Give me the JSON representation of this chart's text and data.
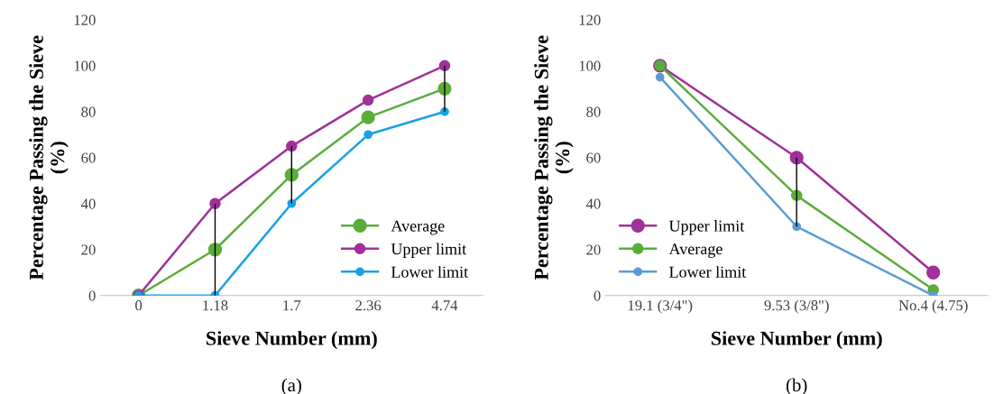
{
  "chart_data": [
    {
      "type": "line",
      "xlabel": "Sieve Number (mm)",
      "ylabel": "Percentage Passing the Sieve\n(%)",
      "annotations": [
        "(a)"
      ],
      "categories": [
        "0",
        "1.18",
        "1.7",
        "2.36",
        "4.74"
      ],
      "ylim": [
        0,
        120
      ],
      "yticks": [
        0,
        20,
        40,
        60,
        80,
        100,
        120
      ],
      "marker": "circle",
      "legend": "bottom right",
      "grid": false,
      "series": [
        {
          "name": "Average",
          "color": "#5aad3a",
          "values": [
            0,
            20,
            52.5,
            77.5,
            90
          ],
          "errors": [
            null,
            [
              0,
              40
            ],
            [
              40,
              65
            ],
            null,
            [
              80,
              100
            ]
          ]
        },
        {
          "name": "Upper limit",
          "color": "#a0309a",
          "values": [
            0,
            40,
            65,
            85,
            100
          ]
        },
        {
          "name": "Lower limit",
          "color": "#1ba1e2",
          "values": [
            0,
            0,
            40,
            70,
            80
          ]
        }
      ]
    },
    {
      "type": "line",
      "xlabel": "Sieve Number (mm)",
      "ylabel": "Percentage Passing the Sieve\n(%)",
      "annotations": [
        "(b)"
      ],
      "categories": [
        "19.1 (3/4\")",
        "9.53 (3/8\")",
        "No.4 (4.75)"
      ],
      "ylim": [
        0,
        120
      ],
      "yticks": [
        0,
        20,
        40,
        60,
        80,
        100,
        120
      ],
      "marker": "circle",
      "legend": "bottom left",
      "grid": false,
      "series": [
        {
          "name": "Upper limit",
          "color": "#a0309a",
          "values": [
            100,
            60,
            10
          ]
        },
        {
          "name": "Average",
          "color": "#5aad3a",
          "values": [
            100,
            43.5,
            2.5
          ],
          "errors": [
            null,
            [
              30,
              60
            ],
            null
          ]
        },
        {
          "name": "Lower limit",
          "color": "#5b9bd5",
          "values": [
            95,
            30,
            0
          ]
        }
      ]
    }
  ]
}
